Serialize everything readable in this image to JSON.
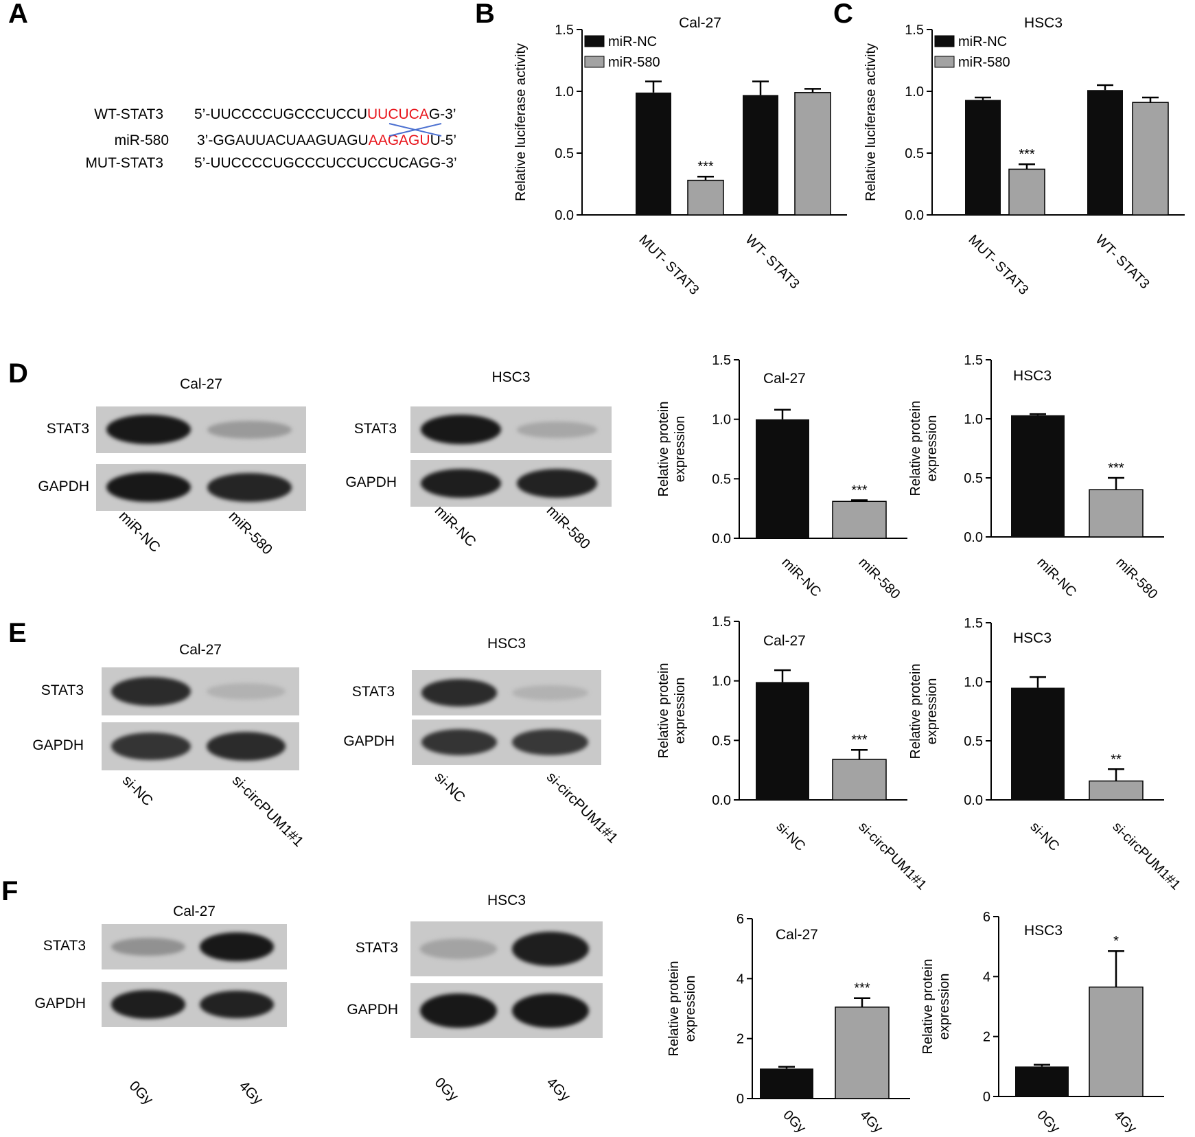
{
  "panels": {
    "A": "A",
    "B": "B",
    "C": "C",
    "D": "D",
    "E": "E",
    "F": "F"
  },
  "colors": {
    "black": "#0d0d0d",
    "gray": "#a3a3a3",
    "red": "#e8141b",
    "cross": "#4a6fd0"
  },
  "sequences": {
    "wt_label": "WT-STAT3",
    "wt_prefix": "5’-UUCCCCUGCCCUCCU",
    "wt_red": "UUCUCA",
    "wt_suffix": "G-3’",
    "mir_label": "miR-580",
    "mir_prefix": "3’-GGAUUACUAAGUAGU",
    "mir_red": "AAGAGU",
    "mir_suffix": "U-5’",
    "mut_label": "MUT-STAT3",
    "mut_seq": "5’-UUCCCCUGCCCUCCUCCUCAGG-3’"
  },
  "blots": {
    "D": {
      "left_title": "Cal-27",
      "right_title": "HSC3",
      "rows": [
        "STAT3",
        "GAPDH"
      ],
      "lanes": [
        "miR-NC",
        "miR-580"
      ]
    },
    "E": {
      "left_title": "Cal-27",
      "right_title": "HSC3",
      "rows": [
        "STAT3",
        "GAPDH"
      ],
      "lanes": [
        "si-NC",
        "si-circPUM1#1"
      ]
    },
    "F": {
      "left_title": "Cal-27",
      "right_title": "HSC3",
      "rows": [
        "STAT3",
        "GAPDH"
      ],
      "lanes": [
        "0Gy",
        "4Gy"
      ]
    }
  },
  "chart_data": [
    {
      "id": "B",
      "type": "bar",
      "title": "Cal-27",
      "ylabel": "Relative luciferase activity",
      "ylim": [
        0,
        1.5
      ],
      "yticks": [
        "0.0",
        "0.5",
        "1.0",
        "1.5"
      ],
      "categories": [
        "MUT- STAT3",
        "WT- STAT3"
      ],
      "legend": "top-left",
      "series": [
        {
          "name": "miR-NC",
          "values": [
            0.99,
            0.97
          ],
          "errors": [
            0.09,
            0.11
          ]
        },
        {
          "name": "miR-580",
          "values": [
            0.28,
            0.99
          ],
          "errors": [
            0.03,
            0.03
          ]
        }
      ],
      "annotations": [
        {
          "category": 0,
          "series": 1,
          "text": "***"
        }
      ]
    },
    {
      "id": "C",
      "type": "bar",
      "title": "HSC3",
      "ylabel": "Relative luciferase activity",
      "ylim": [
        0,
        1.5
      ],
      "yticks": [
        "0.0",
        "0.5",
        "1.0",
        "1.5"
      ],
      "categories": [
        "MUT- STAT3",
        "WT- STAT3"
      ],
      "legend": "top-left",
      "series": [
        {
          "name": "miR-NC",
          "values": [
            0.93,
            1.01
          ],
          "errors": [
            0.02,
            0.04
          ]
        },
        {
          "name": "miR-580",
          "values": [
            0.37,
            0.91
          ],
          "errors": [
            0.04,
            0.04
          ]
        }
      ],
      "annotations": [
        {
          "category": 0,
          "series": 1,
          "text": "***"
        }
      ]
    },
    {
      "id": "D-Cal27",
      "type": "bar",
      "title": "Cal-27",
      "ylabel": "Relative protein expression",
      "ylim": [
        0,
        1.5
      ],
      "yticks": [
        "0.0",
        "0.5",
        "1.0",
        "1.5"
      ],
      "categories": [
        "miR-NC",
        "miR-580"
      ],
      "values": [
        1.0,
        0.31
      ],
      "errors": [
        0.08,
        0.01
      ],
      "annotations": [
        {
          "category": 1,
          "text": "***"
        }
      ]
    },
    {
      "id": "D-HSC3",
      "type": "bar",
      "title": "HSC3",
      "ylabel": "Relative protein expression",
      "ylim": [
        0,
        1.5
      ],
      "yticks": [
        "0.0",
        "0.5",
        "1.0",
        "1.5"
      ],
      "categories": [
        "miR-NC",
        "miR-580"
      ],
      "values": [
        1.03,
        0.4
      ],
      "errors": [
        0.01,
        0.1
      ],
      "annotations": [
        {
          "category": 1,
          "text": "***"
        }
      ]
    },
    {
      "id": "E-Cal27",
      "type": "bar",
      "title": "Cal-27",
      "ylabel": "Relative protein expression",
      "ylim": [
        0,
        1.5
      ],
      "yticks": [
        "0.0",
        "0.5",
        "1.0",
        "1.5"
      ],
      "categories": [
        "si-NC",
        "si-circPUM1#1"
      ],
      "values": [
        0.99,
        0.34
      ],
      "errors": [
        0.1,
        0.08
      ],
      "annotations": [
        {
          "category": 1,
          "text": "***"
        }
      ]
    },
    {
      "id": "E-HSC3",
      "type": "bar",
      "title": "HSC3",
      "ylabel": "Relative protein expression",
      "ylim": [
        0,
        1.5
      ],
      "yticks": [
        "0.0",
        "0.5",
        "1.0",
        "1.5"
      ],
      "categories": [
        "si-NC",
        "si-circPUM1#1"
      ],
      "values": [
        0.95,
        0.16
      ],
      "errors": [
        0.09,
        0.1
      ],
      "annotations": [
        {
          "category": 1,
          "text": "**"
        }
      ]
    },
    {
      "id": "F-Cal27",
      "type": "bar",
      "title": "Cal-27",
      "ylabel": "Relative protein expression",
      "ylim": [
        0,
        6
      ],
      "yticks": [
        "0",
        "2",
        "4",
        "6"
      ],
      "categories": [
        "0Gy",
        "4Gy"
      ],
      "values": [
        1.0,
        3.05
      ],
      "errors": [
        0.06,
        0.3
      ],
      "annotations": [
        {
          "category": 1,
          "text": "***"
        }
      ]
    },
    {
      "id": "F-HSC3",
      "type": "bar",
      "title": "HSC3",
      "ylabel": "Relative protein expression",
      "ylim": [
        0,
        6
      ],
      "yticks": [
        "0",
        "2",
        "4",
        "6"
      ],
      "categories": [
        "0Gy",
        "4Gy"
      ],
      "values": [
        1.0,
        3.65
      ],
      "errors": [
        0.06,
        1.2
      ],
      "annotations": [
        {
          "category": 1,
          "text": "*"
        }
      ]
    }
  ]
}
